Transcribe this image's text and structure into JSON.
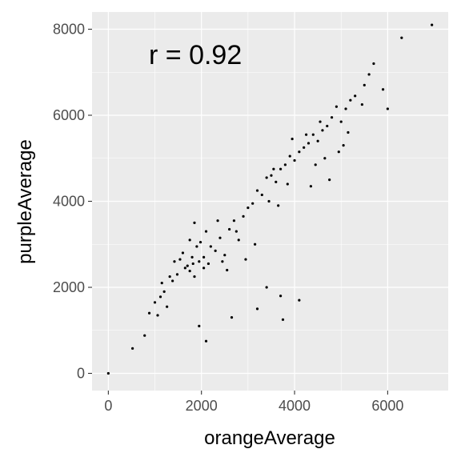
{
  "chart_data": {
    "type": "scatter",
    "title": "",
    "xlabel": "orangeAverage",
    "ylabel": "purpleAverage",
    "xlim": [
      -350,
      7300
    ],
    "ylim": [
      -400,
      8400
    ],
    "x_ticks": [
      0,
      2000,
      4000,
      6000
    ],
    "y_ticks": [
      0,
      2000,
      4000,
      6000,
      8000
    ],
    "x_tick_labels": [
      "0",
      "2000",
      "4000",
      "6000"
    ],
    "y_tick_labels": [
      "0",
      "2000",
      "4000",
      "6000",
      "8000"
    ],
    "grid": true,
    "legend": "none",
    "annotation": "r = 0.92",
    "colors": {
      "panel": "#ebebeb",
      "grid": "#ffffff",
      "point": "#000000",
      "tick_label": "#4d4d4d"
    },
    "points": {
      "x": [
        0,
        520,
        780,
        880,
        1000,
        1060,
        1120,
        1150,
        1200,
        1260,
        1320,
        1380,
        1420,
        1480,
        1540,
        1600,
        1650,
        1700,
        1750,
        1800,
        1820,
        1850,
        1900,
        1950,
        1980,
        2050,
        2100,
        2150,
        2200,
        2300,
        2400,
        2500,
        2600,
        2700,
        2800,
        2900,
        3000,
        3100,
        3200,
        3300,
        3400,
        3500,
        3600,
        3700,
        3800,
        3900,
        4000,
        4100,
        4200,
        4300,
        4400,
        4500,
        4600,
        4700,
        4800,
        4900,
        5000,
        5100,
        5200,
        5300,
        5500,
        5600,
        5700,
        5900,
        6000,
        6300,
        6950,
        3700,
        3750,
        4100,
        3200,
        2650,
        2100,
        1950,
        3400,
        1750,
        1850,
        2050,
        2550,
        2350,
        2950,
        3150,
        3550,
        3650,
        3850,
        4250,
        4450,
        4650,
        4750,
        5050,
        5150,
        5450,
        4950,
        4550,
        4350,
        3950,
        3450,
        2750,
        2450
      ],
      "y": [
        0,
        580,
        880,
        1400,
        1650,
        1350,
        1780,
        2100,
        1900,
        1550,
        2250,
        2150,
        2600,
        2300,
        2650,
        2800,
        2450,
        2500,
        2380,
        2700,
        2550,
        2250,
        2950,
        2600,
        3050,
        2700,
        3300,
        2550,
        2950,
        2850,
        3150,
        2750,
        3350,
        3550,
        3100,
        3650,
        3850,
        3950,
        4250,
        4150,
        4550,
        4600,
        4450,
        4750,
        4850,
        5050,
        4950,
        5150,
        5250,
        5350,
        5550,
        5400,
        5650,
        5750,
        5950,
        6200,
        5850,
        6150,
        6350,
        6450,
        6700,
        6950,
        7200,
        6600,
        6150,
        7800,
        8100,
        1800,
        1250,
        1700,
        1500,
        1300,
        750,
        1100,
        2000,
        3100,
        3500,
        2450,
        2400,
        3550,
        2650,
        3000,
        4750,
        3900,
        4400,
        5550,
        4850,
        5000,
        4500,
        5300,
        5600,
        6250,
        5150,
        5850,
        4350,
        5450,
        4000,
        3300,
        2600
      ]
    }
  }
}
